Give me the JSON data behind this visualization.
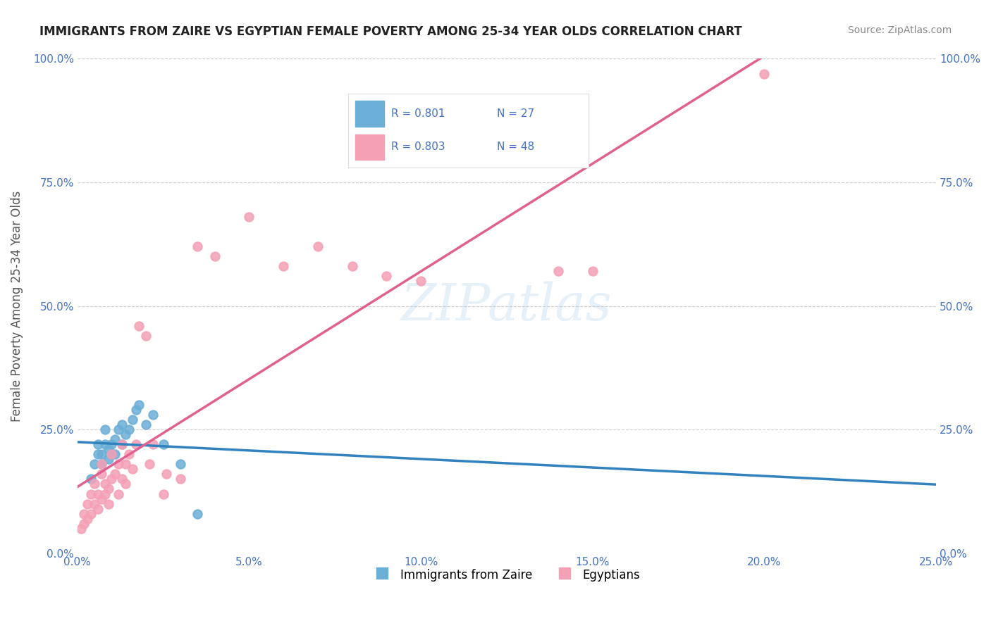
{
  "title": "IMMIGRANTS FROM ZAIRE VS EGYPTIAN FEMALE POVERTY AMONG 25-34 YEAR OLDS CORRELATION CHART",
  "source": "Source: ZipAtlas.com",
  "xlabel": "",
  "ylabel": "Female Poverty Among 25-34 Year Olds",
  "xlim": [
    0.0,
    0.25
  ],
  "ylim": [
    0.0,
    1.0
  ],
  "xticks": [
    0.0,
    0.05,
    0.1,
    0.15,
    0.2,
    0.25
  ],
  "yticks": [
    0.0,
    0.25,
    0.5,
    0.75,
    1.0
  ],
  "xtick_labels": [
    "0.0%",
    "5.0%",
    "10.0%",
    "15.0%",
    "20.0%",
    "25.0%"
  ],
  "ytick_labels": [
    "0.0%",
    "25.0%",
    "50.0%",
    "75.0%",
    "100.0%"
  ],
  "blue_color": "#6baed6",
  "pink_color": "#f4a0b5",
  "blue_line_color": "#3182bd",
  "pink_line_color": "#e06090",
  "blue_R": "0.801",
  "blue_N": "27",
  "pink_R": "0.803",
  "pink_N": "48",
  "legend_label_blue": "Immigrants from Zaire",
  "legend_label_pink": "Egyptians",
  "watermark": "ZIPatlas",
  "background_color": "#ffffff",
  "blue_scatter_x": [
    0.004,
    0.005,
    0.006,
    0.006,
    0.007,
    0.007,
    0.008,
    0.008,
    0.009,
    0.009,
    0.01,
    0.01,
    0.011,
    0.011,
    0.012,
    0.013,
    0.013,
    0.014,
    0.015,
    0.016,
    0.017,
    0.018,
    0.02,
    0.022,
    0.025,
    0.03,
    0.035
  ],
  "blue_scatter_y": [
    0.15,
    0.18,
    0.2,
    0.22,
    0.18,
    0.2,
    0.22,
    0.25,
    0.19,
    0.21,
    0.2,
    0.22,
    0.2,
    0.23,
    0.25,
    0.22,
    0.26,
    0.24,
    0.25,
    0.27,
    0.29,
    0.3,
    0.26,
    0.28,
    0.22,
    0.18,
    0.08
  ],
  "pink_scatter_x": [
    0.001,
    0.002,
    0.002,
    0.003,
    0.003,
    0.004,
    0.004,
    0.005,
    0.005,
    0.006,
    0.006,
    0.007,
    0.007,
    0.007,
    0.008,
    0.008,
    0.009,
    0.009,
    0.01,
    0.01,
    0.011,
    0.012,
    0.012,
    0.013,
    0.013,
    0.014,
    0.014,
    0.015,
    0.016,
    0.017,
    0.018,
    0.02,
    0.021,
    0.022,
    0.025,
    0.026,
    0.03,
    0.035,
    0.04,
    0.05,
    0.06,
    0.07,
    0.08,
    0.09,
    0.1,
    0.14,
    0.15,
    0.2
  ],
  "pink_scatter_y": [
    0.05,
    0.06,
    0.08,
    0.07,
    0.1,
    0.08,
    0.12,
    0.1,
    0.14,
    0.09,
    0.12,
    0.11,
    0.16,
    0.18,
    0.12,
    0.14,
    0.1,
    0.13,
    0.15,
    0.2,
    0.16,
    0.12,
    0.18,
    0.15,
    0.22,
    0.14,
    0.18,
    0.2,
    0.17,
    0.22,
    0.46,
    0.44,
    0.18,
    0.22,
    0.12,
    0.16,
    0.15,
    0.62,
    0.6,
    0.68,
    0.58,
    0.62,
    0.58,
    0.56,
    0.55,
    0.57,
    0.57,
    0.97
  ]
}
